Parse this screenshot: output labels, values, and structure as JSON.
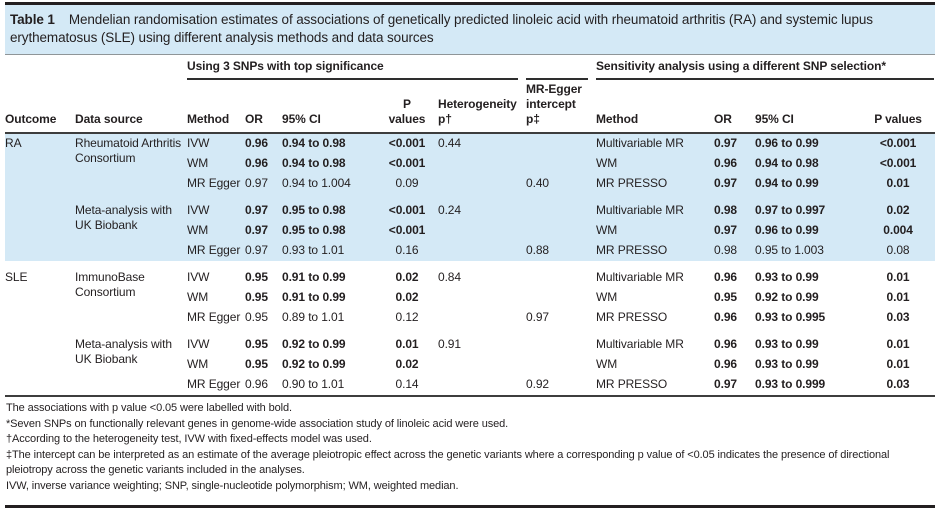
{
  "colors": {
    "band_blue": "#d4e9f6",
    "rule_dark": "#231f20"
  },
  "table": {
    "label": "Table 1",
    "caption": "Mendelian randomisation estimates of associations of genetically predicted linoleic acid with rheumatoid arthritis (RA) and systemic lupus erythematosus (SLE) using different analysis methods and data sources",
    "group_primary": "Using 3 SNPs with top significance",
    "group_sensitivity": "Sensitivity analysis using a different SNP selection*",
    "columns": {
      "outcome": "Outcome",
      "source": "Data source",
      "method1": "Method",
      "or1": "OR",
      "ci1": "95% CI",
      "p1": "P values",
      "het": "Heterogeneity p†",
      "egger": "MR-Egger intercept p‡",
      "method2": "Method",
      "or2": "OR",
      "ci2": "95% CI",
      "p2": "P values"
    },
    "rows": [
      {
        "section": "ra",
        "outcome": "RA",
        "source": "Rheumatoid Arthritis Consortium",
        "m1": "IVW",
        "or1": "0.96",
        "ci1": "0.94 to 0.98",
        "p1": "<0.001",
        "b1": true,
        "het": "0.44",
        "m2": "Multivariable MR",
        "or2": "0.97",
        "ci2": "0.96 to 0.99",
        "p2": "<0.001",
        "b2": true
      },
      {
        "section": "ra",
        "m1": "WM",
        "or1": "0.96",
        "ci1": "0.94 to 0.98",
        "p1": "<0.001",
        "b1": true,
        "m2": "WM",
        "or2": "0.96",
        "ci2": "0.94 to 0.98",
        "p2": "<0.001",
        "b2": true
      },
      {
        "section": "ra",
        "m1": "MR Egger",
        "or1": "0.97",
        "ci1": "0.94 to 1.004",
        "p1": "0.09",
        "b1": false,
        "eg": "0.40",
        "m2": "MR PRESSO",
        "or2": "0.97",
        "ci2": "0.94 to 0.99",
        "p2": "0.01",
        "b2": true
      },
      {
        "section": "ra",
        "gap": true,
        "source": "Meta-analysis with UK Biobank",
        "m1": "IVW",
        "or1": "0.97",
        "ci1": "0.95 to 0.98",
        "p1": "<0.001",
        "b1": true,
        "het": "0.24",
        "m2": "Multivariable MR",
        "or2": "0.98",
        "ci2": "0.97 to 0.997",
        "p2": "0.02",
        "b2": true
      },
      {
        "section": "ra",
        "m1": "WM",
        "or1": "0.97",
        "ci1": "0.95 to 0.98",
        "p1": "<0.001",
        "b1": true,
        "m2": "WM",
        "or2": "0.97",
        "ci2": "0.96 to 0.99",
        "p2": "0.004",
        "b2": true
      },
      {
        "section": "ra",
        "m1": "MR Egger",
        "or1": "0.97",
        "ci1": "0.93 to 1.01",
        "p1": "0.16",
        "b1": false,
        "eg": "0.88",
        "m2": "MR PRESSO",
        "or2": "0.98",
        "ci2": "0.95 to 1.003",
        "p2": "0.08",
        "b2": false
      },
      {
        "section": "sle",
        "gap": true,
        "outcome": "SLE",
        "source": "ImmunoBase Consortium",
        "m1": "IVW",
        "or1": "0.95",
        "ci1": "0.91 to 0.99",
        "p1": "0.02",
        "b1": true,
        "het": "0.84",
        "m2": "Multivariable MR",
        "or2": "0.96",
        "ci2": "0.93 to 0.99",
        "p2": "0.01",
        "b2": true
      },
      {
        "section": "sle",
        "m1": "WM",
        "or1": "0.95",
        "ci1": "0.91 to 0.99",
        "p1": "0.02",
        "b1": true,
        "m2": "WM",
        "or2": "0.95",
        "ci2": "0.92 to 0.99",
        "p2": "0.01",
        "b2": true
      },
      {
        "section": "sle",
        "m1": "MR Egger",
        "or1": "0.95",
        "ci1": "0.89 to 1.01",
        "p1": "0.12",
        "b1": false,
        "eg": "0.97",
        "m2": "MR PRESSO",
        "or2": "0.96",
        "ci2": "0.93 to 0.995",
        "p2": "0.03",
        "b2": true
      },
      {
        "section": "sle",
        "gap": true,
        "source": "Meta-analysis with UK Biobank",
        "m1": "IVW",
        "or1": "0.95",
        "ci1": "0.92 to 0.99",
        "p1": "0.01",
        "b1": true,
        "het": "0.91",
        "m2": "Multivariable MR",
        "or2": "0.96",
        "ci2": "0.93 to 0.99",
        "p2": "0.01",
        "b2": true
      },
      {
        "section": "sle",
        "m1": "WM",
        "or1": "0.95",
        "ci1": "0.92 to 0.99",
        "p1": "0.02",
        "b1": true,
        "m2": "WM",
        "or2": "0.96",
        "ci2": "0.93 to 0.99",
        "p2": "0.01",
        "b2": true
      },
      {
        "section": "sle",
        "m1": "MR Egger",
        "or1": "0.96",
        "ci1": "0.90 to 1.01",
        "p1": "0.14",
        "b1": false,
        "eg": "0.92",
        "m2": "MR PRESSO",
        "or2": "0.97",
        "ci2": "0.93 to 0.999",
        "p2": "0.03",
        "b2": true
      }
    ],
    "footnotes": [
      "The associations with p value <0.05 were labelled with bold.",
      "*Seven SNPs on functionally relevant genes in genome-wide association study of linoleic acid were used.",
      "†According to the heterogeneity test, IVW with fixed-effects model was used.",
      "‡The intercept can be interpreted as an estimate of the average pleiotropic effect across the genetic variants where a corresponding p value of <0.05 indicates the presence of directional pleiotropy across the genetic variants included in the analyses.",
      "IVW, inverse variance weighting; SNP, single-nucleotide polymorphism; WM, weighted median."
    ]
  }
}
